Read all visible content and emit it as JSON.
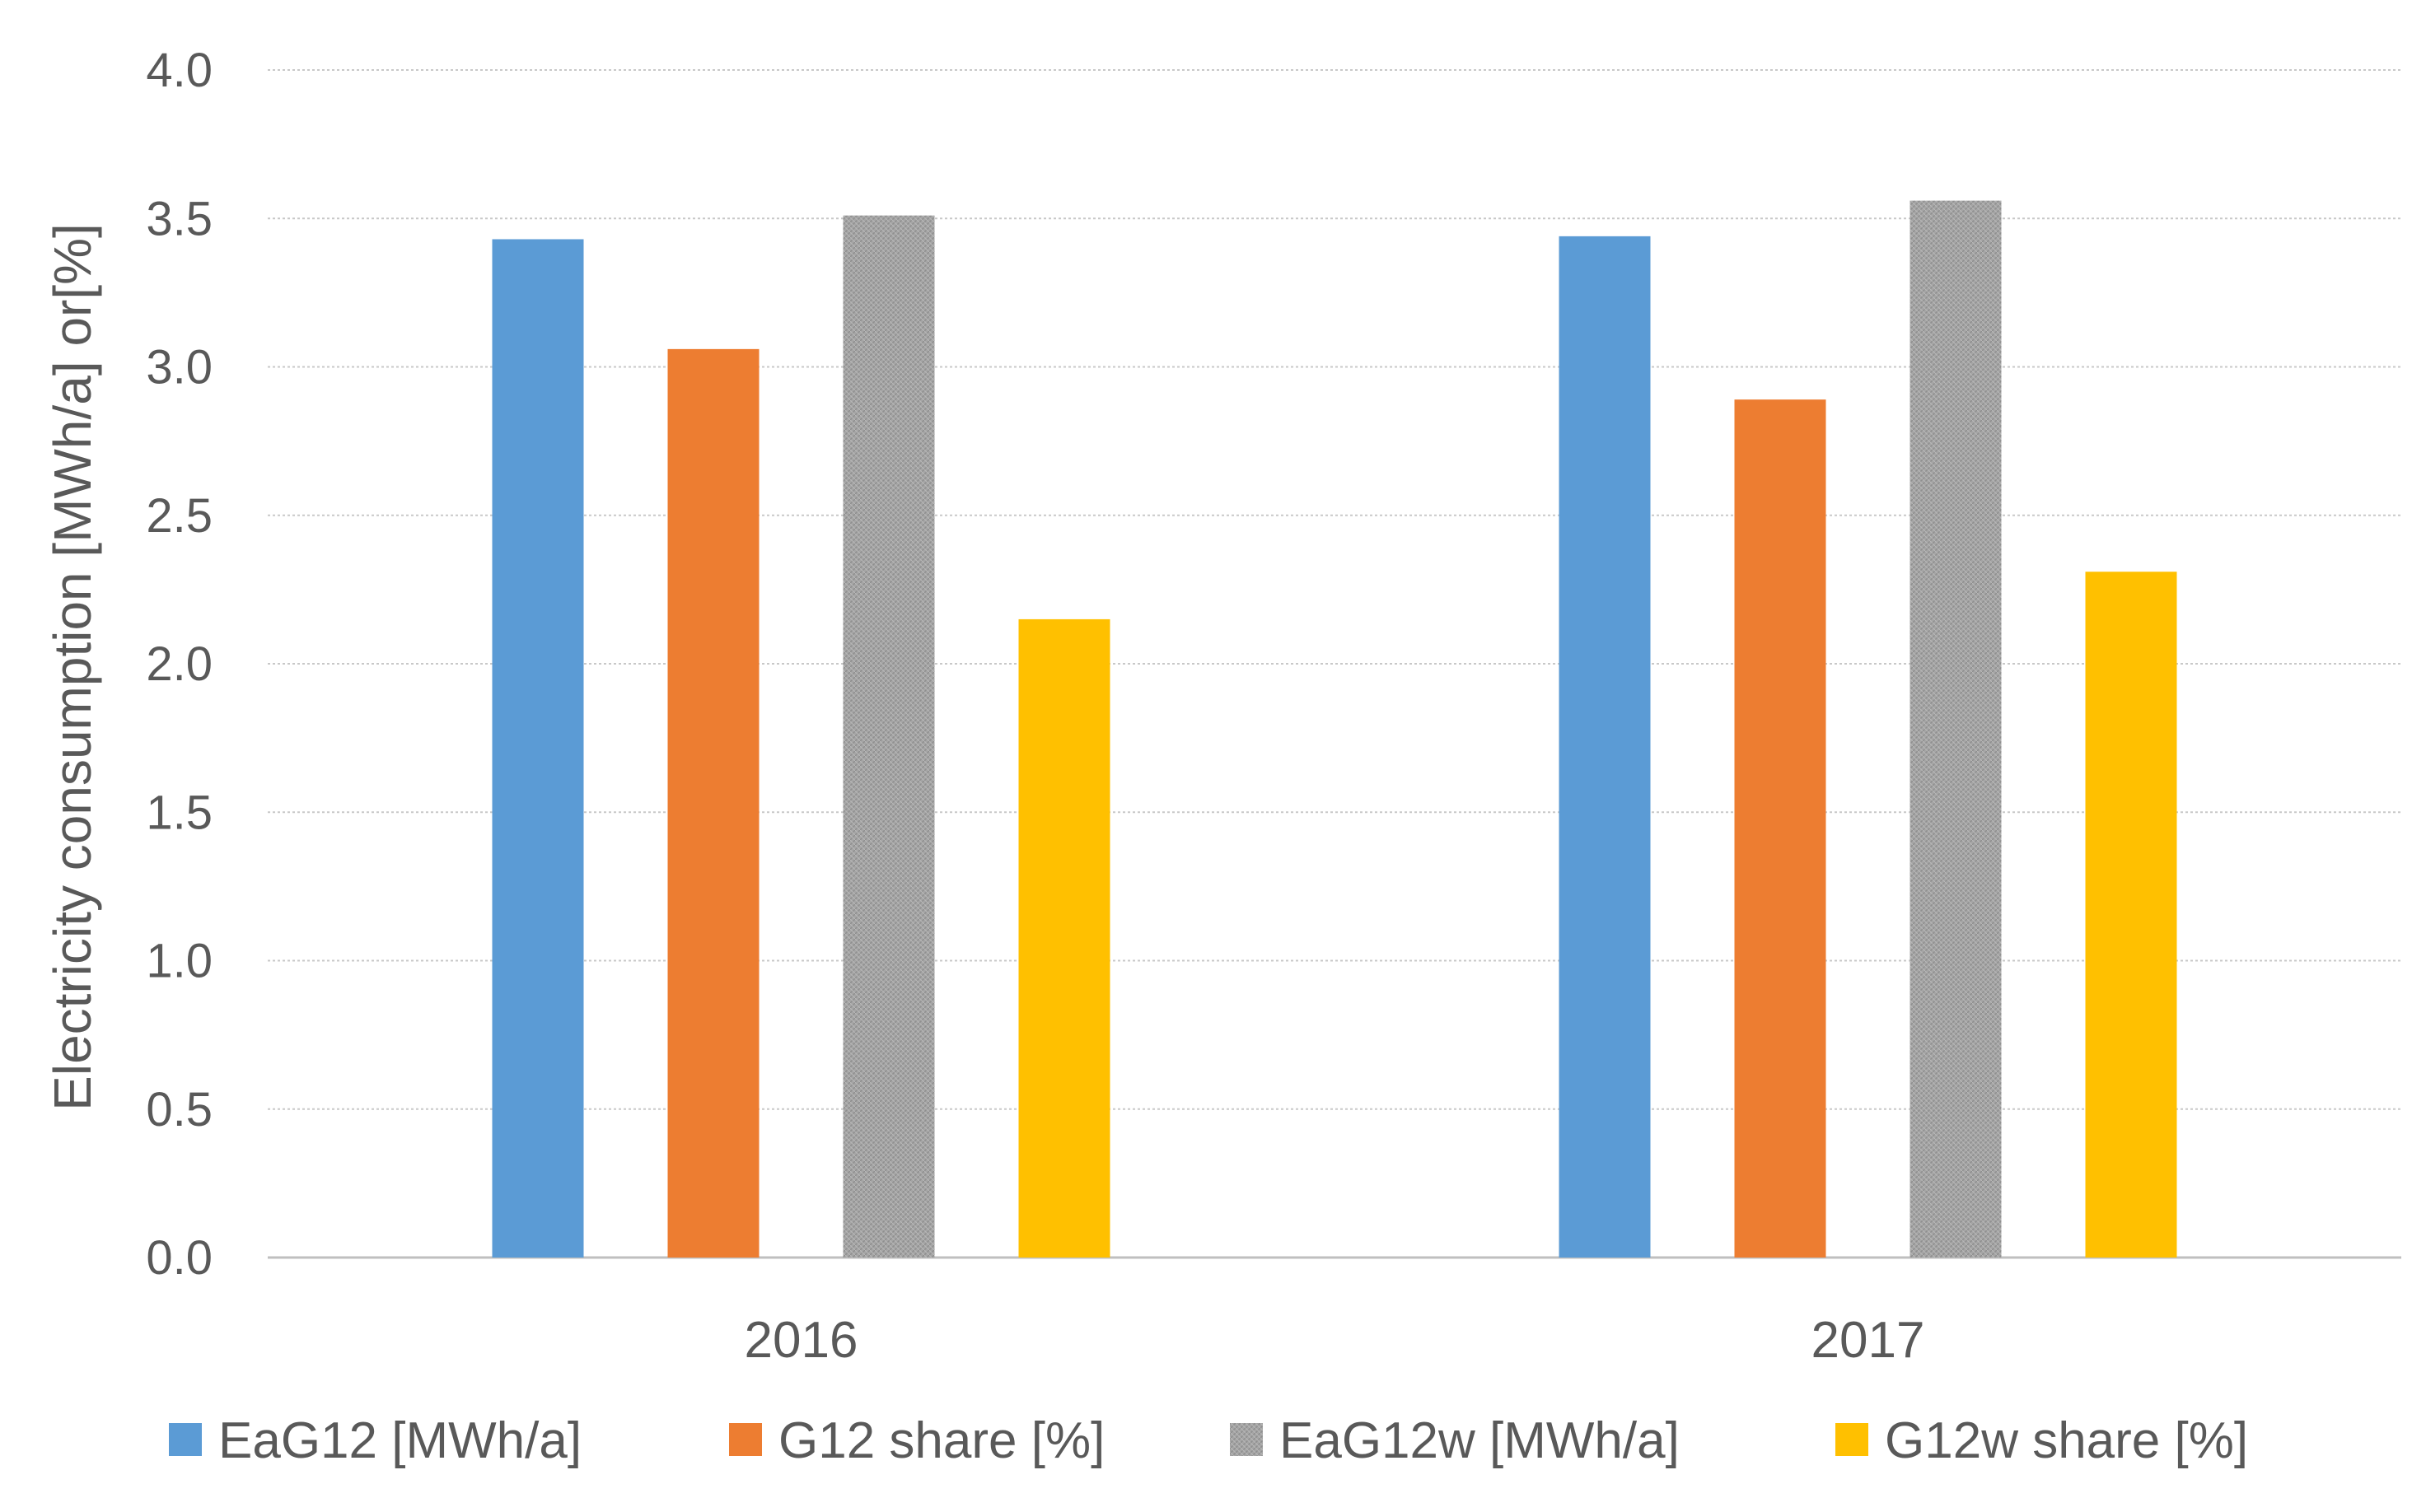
{
  "chart_data": {
    "type": "bar",
    "title": "",
    "xlabel": "",
    "ylabel": "Electricity consumption [MWh/a] or[%]",
    "ylim": [
      0,
      4
    ],
    "yticks": [
      "0.0",
      "0.5",
      "1.0",
      "1.5",
      "2.0",
      "2.5",
      "3.0",
      "3.5",
      "4.0"
    ],
    "grid": true,
    "legend_position": "bottom",
    "categories": [
      "2016",
      "2017"
    ],
    "series": [
      {
        "name": "EaG12 [MWh/a]",
        "color": "#5B9BD5",
        "pattern": "solid",
        "values": [
          3.43,
          3.44
        ]
      },
      {
        "name": "G12 share [%]",
        "color": "#ED7D31",
        "pattern": "solid",
        "values": [
          3.06,
          2.89
        ]
      },
      {
        "name": "EaG12w [MWh/a]",
        "color": "#A5A5A5",
        "pattern": "hatched",
        "values": [
          3.51,
          3.56
        ]
      },
      {
        "name": "G12w share [%]",
        "color": "#FFC000",
        "pattern": "solid",
        "values": [
          2.15,
          2.31
        ]
      }
    ]
  }
}
